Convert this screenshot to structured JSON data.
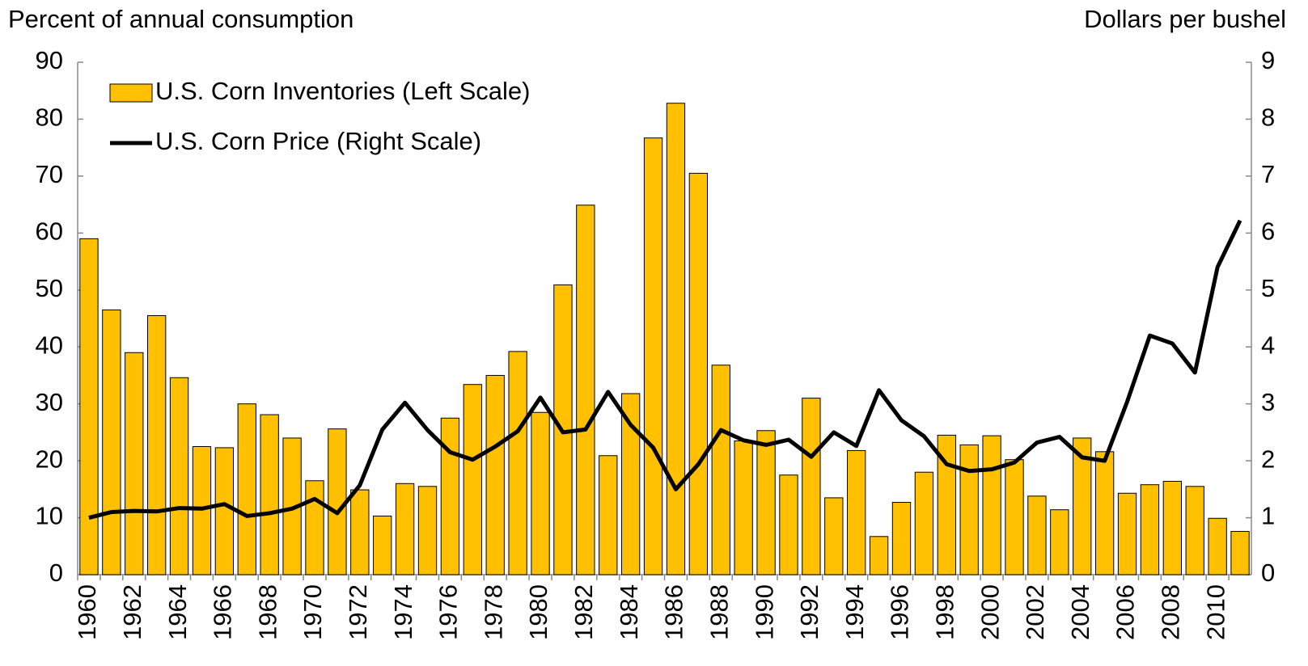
{
  "chart_data": {
    "type": "combo",
    "y_label": "Percent of annual consumption",
    "y2_label": "Dollars per bushel",
    "categories": [
      "1960",
      null,
      "1962",
      null,
      "1964",
      null,
      "1966",
      null,
      "1968",
      null,
      "1970",
      null,
      "1972",
      null,
      "1974",
      null,
      "1976",
      null,
      "1978",
      null,
      "1980",
      null,
      "1982",
      null,
      "1984",
      null,
      "1986",
      null,
      "1988",
      null,
      "1990",
      null,
      "1992",
      null,
      "1994",
      null,
      "1996",
      null,
      "1998",
      null,
      "2000",
      null,
      "2002",
      null,
      "2004",
      null,
      "2006",
      null,
      "2008",
      null,
      "2010",
      null
    ],
    "series": [
      {
        "name": "U.S. Corn Inventories (Left Scale)",
        "type": "bar",
        "color": "#ffc000",
        "values": [
          59,
          46.5,
          39,
          45.5,
          34.6,
          22.5,
          22.3,
          30,
          28.1,
          24,
          16.5,
          25.6,
          14.9,
          10.3,
          16,
          15.5,
          27.5,
          33.4,
          35,
          39.2,
          28.5,
          50.9,
          64.9,
          20.9,
          31.8,
          76.7,
          82.8,
          70.5,
          36.8,
          23.5,
          25.3,
          17.5,
          31,
          13.5,
          21.8,
          6.7,
          12.7,
          18,
          24.5,
          22.8,
          24.4,
          20.2,
          13.8,
          11.4,
          24,
          21.6,
          14.3,
          15.8,
          16.4,
          15.5,
          9.9,
          7.6
        ]
      },
      {
        "name": "U.S. Corn Price (Right Scale)",
        "type": "line",
        "axis": "y2",
        "color": "#000000",
        "values": [
          1.0,
          1.1,
          1.12,
          1.11,
          1.17,
          1.16,
          1.24,
          1.03,
          1.08,
          1.16,
          1.33,
          1.08,
          1.57,
          2.55,
          3.02,
          2.54,
          2.15,
          2.02,
          2.25,
          2.52,
          3.11,
          2.5,
          2.55,
          3.21,
          2.63,
          2.23,
          1.5,
          1.94,
          2.54,
          2.36,
          2.28,
          2.37,
          2.07,
          2.5,
          2.26,
          3.24,
          2.71,
          2.43,
          1.94,
          1.82,
          1.85,
          1.97,
          2.32,
          2.42,
          2.06,
          2.0,
          3.04,
          4.2,
          4.06,
          3.55,
          5.4,
          6.22
        ]
      }
    ],
    "ylim": [
      0,
      90
    ],
    "yticks": [
      0,
      10,
      20,
      30,
      40,
      50,
      60,
      70,
      80,
      90
    ],
    "y2lim": [
      0,
      9
    ],
    "y2ticks": [
      0,
      1,
      2,
      3,
      4,
      5,
      6,
      7,
      8,
      9
    ],
    "legend": "upper left"
  }
}
